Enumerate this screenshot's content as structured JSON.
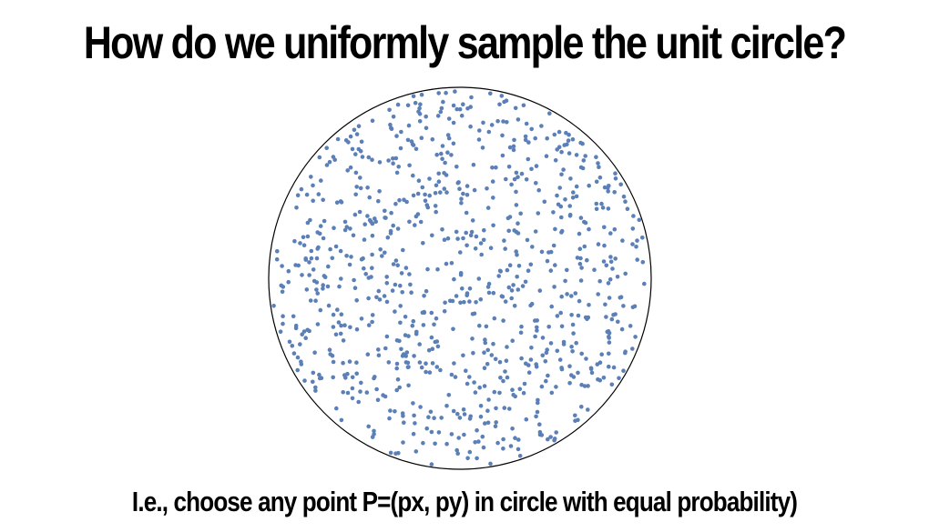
{
  "slide": {
    "title": "How do we uniformly sample the unit circle?",
    "subtitle": "I.e., choose any point P=(px, py) in circle with equal probability)"
  },
  "diagram": {
    "shape": "unit-circle",
    "point_count": 900,
    "point_color": "#5b7fb7",
    "circle_stroke": "#000000"
  }
}
